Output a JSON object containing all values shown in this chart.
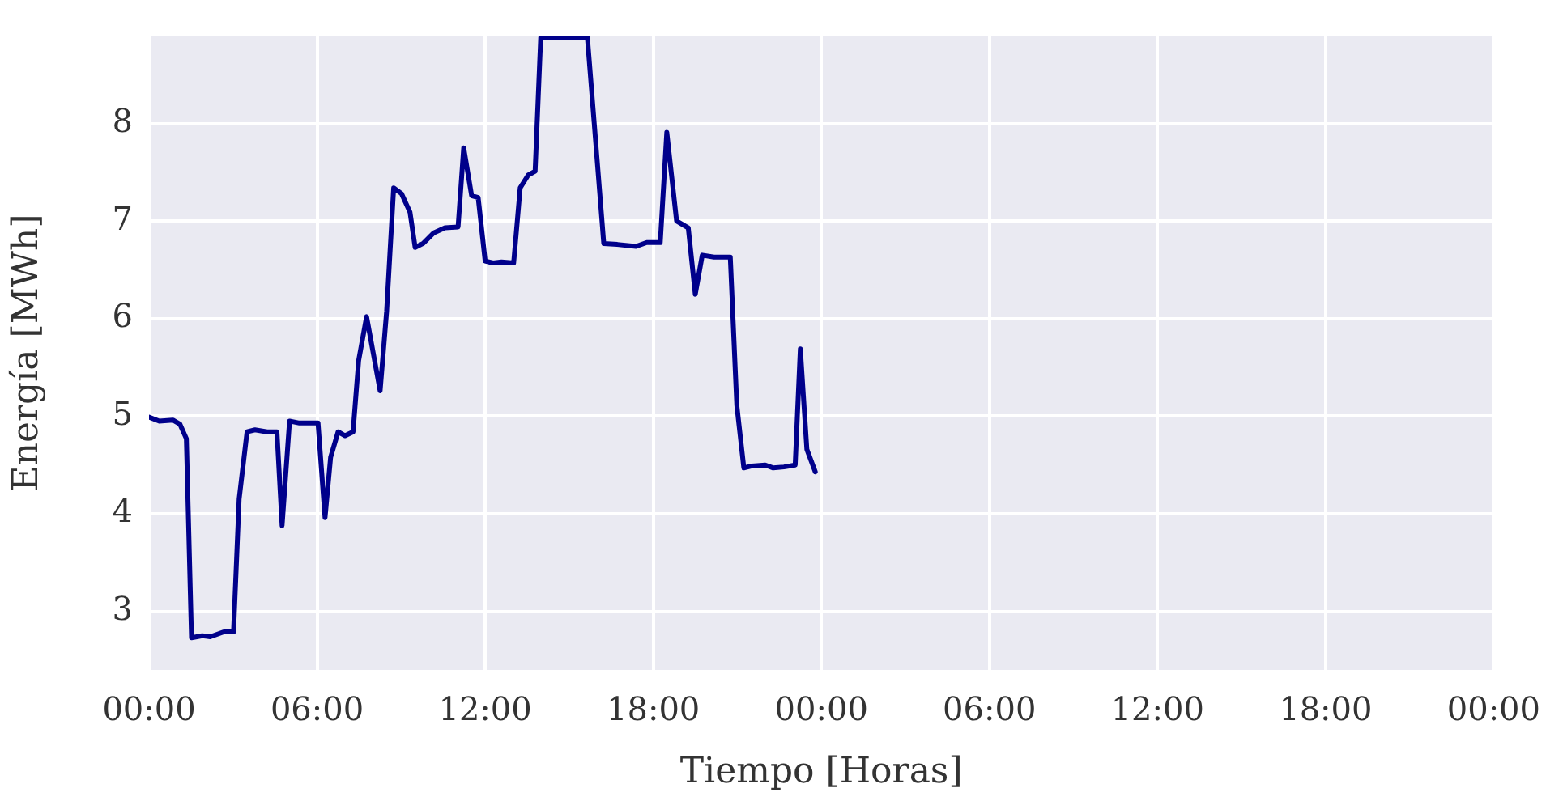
{
  "chart_data": {
    "type": "line",
    "xlabel": "Tiempo [Horas]",
    "ylabel": "Energía [MWh]",
    "x": [
      "--01-01T00:00",
      "--01-01T00:22",
      "--01-01T00:51",
      "--01-01T01:06",
      "--01-01T01:20",
      "--01-01T01:31",
      "--01-01T01:54",
      "--01-01T02:11",
      "--01-01T02:40",
      "--01-01T03:01",
      "--01-01T03:13",
      "--01-01T03:30",
      "--01-01T03:47",
      "--01-01T04:13",
      "--01-01T04:34",
      "--01-01T04:45",
      "--01-01T05:01",
      "--01-01T05:22",
      "--01-01T06:02",
      "--01-01T06:17",
      "--01-01T06:29",
      "--01-01T06:45",
      "--01-01T07:00",
      "--01-01T07:17",
      "--01-01T07:29",
      "--01-01T07:46",
      "--01-01T08:15",
      "--01-01T08:29",
      "--01-01T08:44",
      "--01-01T09:01",
      "--01-01T09:19",
      "--01-01T09:30",
      "--01-01T09:47",
      "--01-01T10:10",
      "--01-01T10:34",
      "--01-01T11:02",
      "--01-01T11:14",
      "--01-01T11:31",
      "--01-01T11:45",
      "--01-01T12:00",
      "--01-01T12:17",
      "--01-01T12:35",
      "--01-01T13:01",
      "--01-01T13:15",
      "--01-01T13:32",
      "--01-01T13:47",
      "--01-01T13:59",
      "--01-01T14:59",
      "--01-01T15:39",
      "--01-01T16:14",
      "--01-01T16:43",
      "--01-01T17:23",
      "--01-01T17:46",
      "--01-01T18:15",
      "--01-01T18:29",
      "--01-01T18:50",
      "--01-01T19:15",
      "--01-01T19:30",
      "--01-01T19:45",
      "--01-01T20:10",
      "--01-01T20:45",
      "--01-01T20:59",
      "--01-01T21:14",
      "--01-01T21:31",
      "--01-01T22:00",
      "--01-01T22:17",
      "--01-01T22:40",
      "--01-01T23:04",
      "--01-01T23:15",
      "--01-01T23:29",
      "--01-01T23:47"
    ],
    "series": [
      {
        "color": "#00008b",
        "values": [
          4.99,
          4.95,
          4.96,
          4.92,
          4.77,
          2.73,
          2.75,
          2.74,
          2.79,
          2.79,
          4.15,
          4.84,
          4.86,
          4.84,
          4.84,
          3.88,
          4.95,
          4.93,
          4.93,
          3.96,
          4.58,
          4.84,
          4.8,
          4.84,
          5.57,
          6.02,
          5.26,
          6.08,
          7.34,
          7.28,
          7.09,
          6.73,
          6.77,
          6.88,
          6.93,
          6.94,
          7.75,
          7.26,
          7.24,
          6.59,
          6.57,
          6.58,
          6.57,
          7.34,
          7.47,
          7.51,
          8.88,
          8.88,
          8.88,
          6.77,
          6.76,
          6.74,
          6.78,
          6.78,
          7.91,
          7.0,
          6.93,
          6.25,
          6.65,
          6.63,
          6.63,
          5.11,
          4.47,
          4.49,
          4.5,
          4.47,
          4.48,
          4.5,
          5.69,
          4.66,
          4.43
        ]
      }
    ],
    "xlim": [
      "--01-01T00:00",
      "--01-03T00:00"
    ],
    "xticks": [
      {
        "value": "--01-01T00:00",
        "label": "00:00"
      },
      {
        "value": "--01-01T06:00",
        "label": "06:00"
      },
      {
        "value": "--01-01T12:00",
        "label": "12:00"
      },
      {
        "value": "--01-01T18:00",
        "label": "18:00"
      },
      {
        "value": "--01-02T00:00",
        "label": "00:00"
      },
      {
        "value": "--01-02T06:00",
        "label": "06:00"
      },
      {
        "value": "--01-02T12:00",
        "label": "12:00"
      },
      {
        "value": "--01-02T18:00",
        "label": "18:00"
      },
      {
        "value": "--01-03T00:00",
        "label": "00:00"
      }
    ],
    "ylim": [
      2.4,
      8.9
    ],
    "yticks": [
      3,
      4,
      5,
      6,
      7,
      8
    ],
    "grid": true,
    "legend": false,
    "marker": "none",
    "line_style": "solid"
  }
}
